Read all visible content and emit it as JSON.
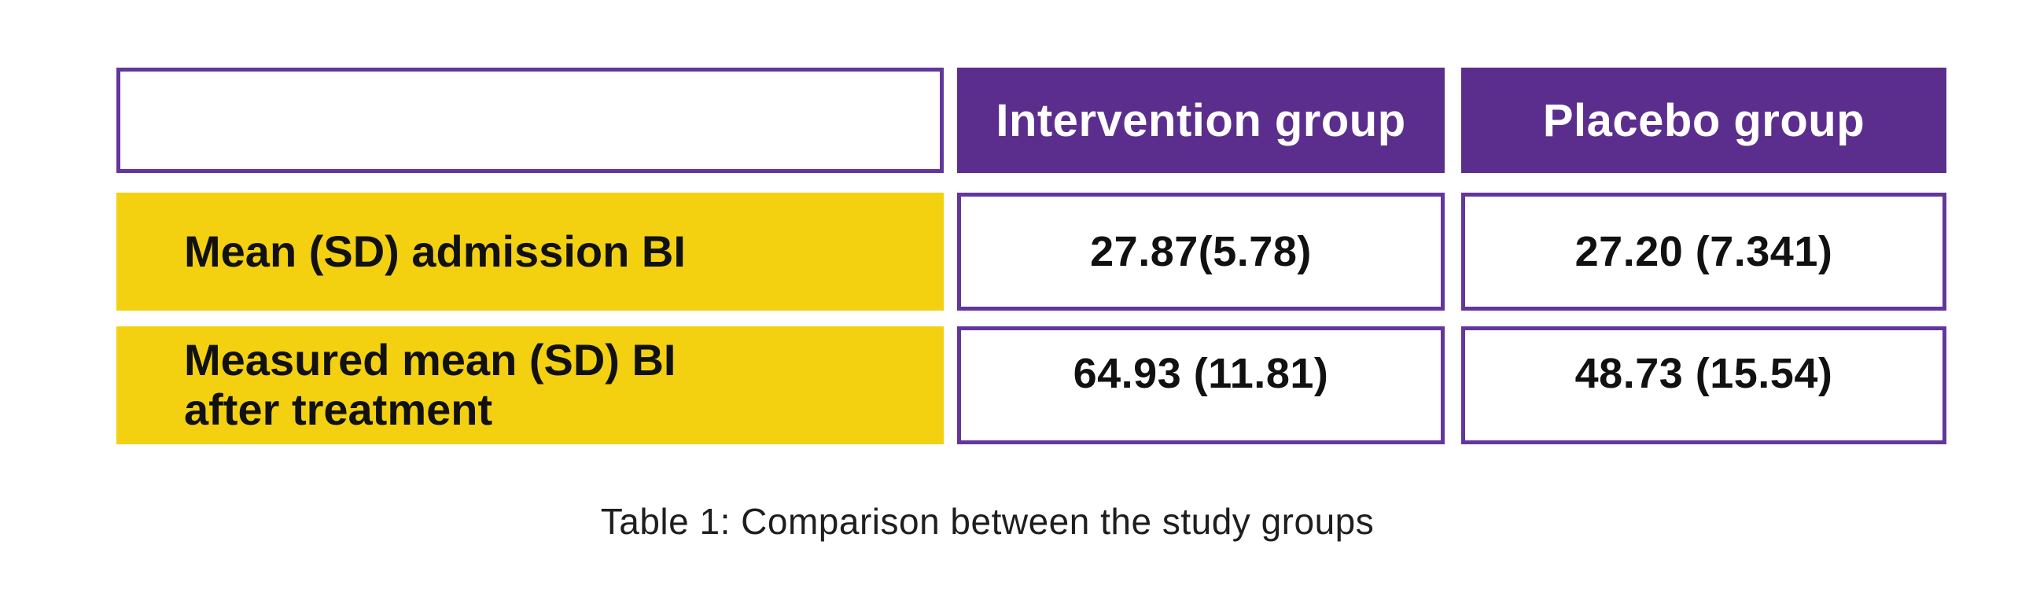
{
  "table": {
    "columns": [
      {
        "label": ""
      },
      {
        "label": "Intervention group"
      },
      {
        "label": "Placebo group"
      }
    ],
    "rows": [
      {
        "label": "Mean (SD) admission BI",
        "label_line2": "",
        "values": [
          "27.87(5.78)",
          "27.20 (7.341)"
        ]
      },
      {
        "label": "Measured mean (SD) BI",
        "label_line2": "after treatment",
        "values": [
          "64.93 (11.81)",
          "48.73 (15.54)"
        ]
      }
    ],
    "caption": "Table 1: Comparison between the study groups"
  },
  "colors": {
    "header_bg": "#5b2e8e",
    "header_text": "#ffffff",
    "border_purple": "#63369b",
    "row_label_bg": "#f3d111",
    "body_text": "#111111",
    "caption_text": "#1e1e1e"
  },
  "chart_data": {
    "type": "table",
    "title": "Table 1: Comparison between the study groups",
    "columns": [
      "",
      "Intervention group",
      "Placebo group"
    ],
    "rows": [
      [
        "Mean (SD) admission BI",
        "27.87(5.78)",
        "27.20 (7.341)"
      ],
      [
        "Measured mean (SD) BI after treatment",
        "64.93 (11.81)",
        "48.73 (15.54)"
      ]
    ],
    "values": {
      "admission_BI": {
        "intervention": {
          "mean": 27.87,
          "sd": 5.78
        },
        "placebo": {
          "mean": 27.2,
          "sd": 7.341
        }
      },
      "BI_after_treatment": {
        "intervention": {
          "mean": 64.93,
          "sd": 11.81
        },
        "placebo": {
          "mean": 48.73,
          "sd": 15.54
        }
      }
    },
    "layout_hints": {
      "header_style": "solid purple fill, white bold text",
      "row_label_style": "solid yellow fill, black bold text",
      "value_cell_style": "white fill, purple border, black bold text",
      "caption_position": "bottom center"
    }
  }
}
